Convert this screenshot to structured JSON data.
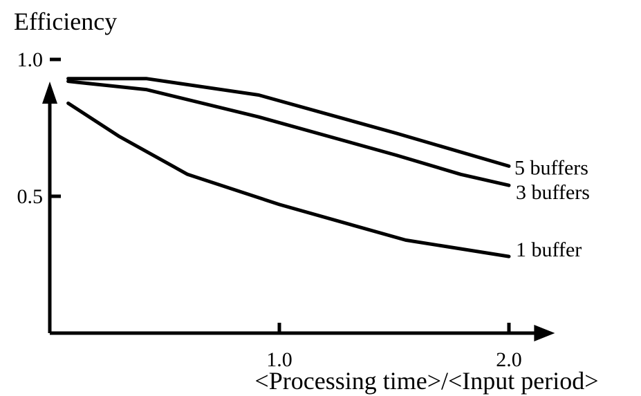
{
  "chart_data": {
    "type": "line",
    "title": "",
    "ylabel": "Efficiency",
    "xlabel": "<Processing time>/<Input period>",
    "xlim": [
      0,
      2.2
    ],
    "ylim": [
      0,
      1.0
    ],
    "x_ticks": [
      {
        "value": 1.0,
        "label": "1.0"
      },
      {
        "value": 2.0,
        "label": "2.0"
      }
    ],
    "y_ticks": [
      {
        "value": 0.5,
        "label": "0.5"
      },
      {
        "value": 1.0,
        "label": "1.0"
      }
    ],
    "grid": false,
    "legend": "inline labels at line ends",
    "series": [
      {
        "name": "5 buffers",
        "color": "#000000",
        "points": [
          [
            0.08,
            0.93
          ],
          [
            0.42,
            0.93
          ],
          [
            0.91,
            0.87
          ],
          [
            1.51,
            0.73
          ],
          [
            2.0,
            0.61
          ]
        ]
      },
      {
        "name": "3 buffers",
        "color": "#000000",
        "points": [
          [
            0.08,
            0.92
          ],
          [
            0.42,
            0.89
          ],
          [
            0.91,
            0.79
          ],
          [
            1.51,
            0.65
          ],
          [
            1.79,
            0.58
          ],
          [
            2.0,
            0.54
          ]
        ]
      },
      {
        "name": "1 buffer",
        "color": "#000000",
        "points": [
          [
            0.08,
            0.84
          ],
          [
            0.3,
            0.72
          ],
          [
            0.6,
            0.58
          ],
          [
            1.0,
            0.47
          ],
          [
            1.55,
            0.34
          ],
          [
            2.0,
            0.28
          ]
        ]
      }
    ]
  }
}
